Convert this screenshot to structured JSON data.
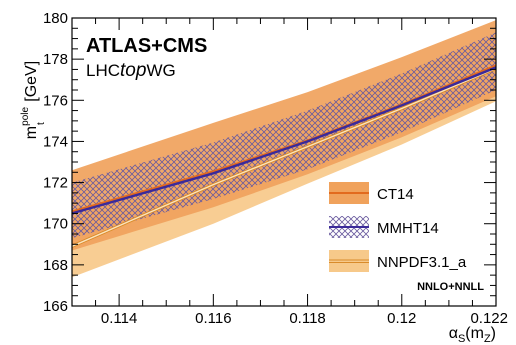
{
  "chart_data": {
    "type": "area",
    "title": "ATLAS+CMS",
    "subtitle": {
      "prefix": "LHC",
      "italic": "top",
      "suffix": "WG"
    },
    "xlabel": {
      "main": "α",
      "sub": "S",
      "paren_open": "(m",
      "paren_sub": "Z",
      "paren_close": ")"
    },
    "ylabel": {
      "main": "m",
      "sup": "pole",
      "sub": "t",
      "unit": " [GeV]"
    },
    "xlim": [
      0.113,
      0.122
    ],
    "ylim": [
      166,
      180
    ],
    "x_ticks": [
      0.114,
      0.116,
      0.118,
      0.12,
      0.122
    ],
    "x_tick_labels": [
      "0.114",
      "0.116",
      "0.118",
      "0.12",
      "0.122"
    ],
    "y_ticks": [
      166,
      168,
      170,
      172,
      174,
      176,
      178,
      180
    ],
    "y_tick_labels": [
      "166",
      "168",
      "170",
      "172",
      "174",
      "176",
      "178",
      "180"
    ],
    "annotation": "NNLO+NNLL",
    "legend_position": "bottom-right",
    "series": [
      {
        "name": "NNPDF3.1_a",
        "color": "#f7c98a",
        "line_color": "#d98b2a",
        "x": [
          0.113,
          0.116,
          0.118,
          0.12,
          0.122
        ],
        "center": [
          168.9,
          171.9,
          173.75,
          175.6,
          177.55
        ],
        "lower": [
          167.4,
          170.0,
          171.95,
          173.85,
          175.95
        ],
        "upper": [
          170.3,
          173.4,
          175.4,
          177.3,
          179.2
        ]
      },
      {
        "name": "CT14",
        "color": "#f0a25c",
        "line_color": "#e26a1e",
        "x": [
          0.113,
          0.116,
          0.118,
          0.12,
          0.122
        ],
        "center": [
          170.6,
          172.55,
          174.05,
          175.8,
          177.7
        ],
        "lower": [
          168.7,
          170.8,
          172.4,
          174.2,
          176.2
        ],
        "upper": [
          172.6,
          174.9,
          176.4,
          178.1,
          179.9
        ]
      },
      {
        "name": "MMHT14",
        "color": "#8a6db0",
        "line_color": "#3b2a9a",
        "x": [
          0.113,
          0.116,
          0.118,
          0.12,
          0.122
        ],
        "center": [
          170.5,
          172.45,
          174.0,
          175.75,
          177.6
        ],
        "lower": [
          169.3,
          171.2,
          172.65,
          174.45,
          176.5
        ],
        "upper": [
          172.0,
          173.95,
          175.5,
          177.3,
          179.3
        ]
      }
    ]
  }
}
